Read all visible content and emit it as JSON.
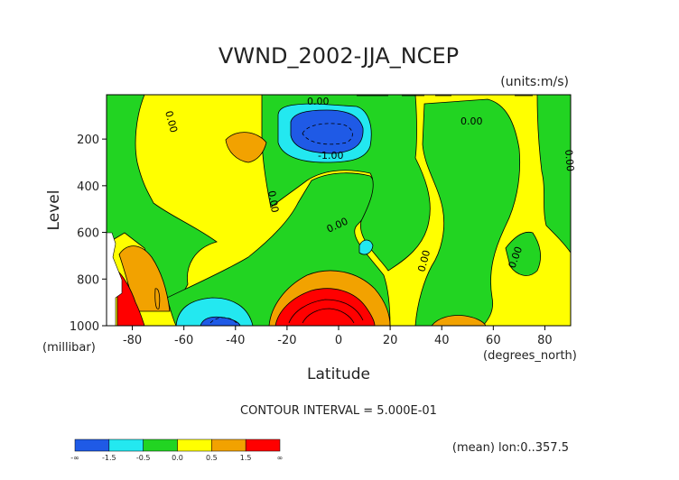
{
  "chart_data": {
    "type": "heatmap",
    "title": "VWND_2002-JJA_NCEP",
    "units": "(units:m/s)",
    "xlabel": "Latitude",
    "ylabel": "Level",
    "x_unit": "(degrees_north)",
    "y_unit": "(millibar)",
    "xlim": [
      -90,
      90
    ],
    "ylim": [
      1000,
      10
    ],
    "x_ticks": [
      "-80",
      "-60",
      "-40",
      "-20",
      "0",
      "20",
      "40",
      "60",
      "80"
    ],
    "y_ticks": [
      "200",
      "400",
      "600",
      "800",
      "1000"
    ],
    "contour_interval": "CONTOUR INTERVAL = 5.000E-01",
    "subtitle": "(mean) lon:0..357.5",
    "contour_labels": [
      "0.00",
      "0.00",
      "0.00",
      "0.00",
      "0.00",
      "0.00",
      "0.00",
      "0.00",
      "0.00",
      "-1.00"
    ],
    "colorbar": {
      "labels": [
        "-∞",
        "-1.5",
        "-0.5",
        "0.0",
        "0.5",
        "1.5",
        "∞"
      ],
      "colors": [
        "#1f5ae6",
        "#23e8f0",
        "#22d422",
        "#ffff00",
        "#f2a200",
        "#ff0000"
      ]
    }
  }
}
